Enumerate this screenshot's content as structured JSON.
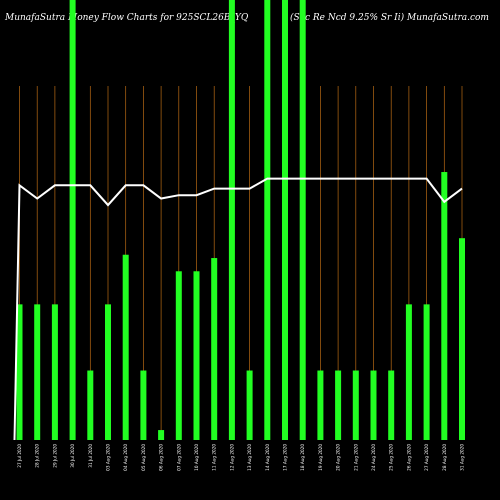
{
  "header": {
    "title_left": "MunafaSutra   Money Flow  Charts for 925SCL26B_YQ",
    "title_right": "(Sec Re  Ncd 9.25% Sr Ii) MunafaSutra.com"
  },
  "colors": {
    "background": "#000000",
    "bar": "#22ff22",
    "gridline": "#b86a14",
    "line": "#ffffff"
  },
  "chart_data": {
    "type": "bar",
    "categories": [
      "27 Jul 2020",
      "28 Jul 2020",
      "29 Jul 2020",
      "30 Jul 2020",
      "31 Jul 2020",
      "03 Aug 2020",
      "04 Aug 2020",
      "05 Aug 2020",
      "06 Aug 2020",
      "07 Aug 2020",
      "10 Aug 2020",
      "11 Aug 2020",
      "12 Aug 2020",
      "13 Aug 2020",
      "14 Aug 2020",
      "17 Aug 2020",
      "18 Aug 2020",
      "19 Aug 2020",
      "20 Aug 2020",
      "21 Aug 2020",
      "24 Aug 2020",
      "25 Aug 2020",
      "26 Aug 2020",
      "27 Aug 2020",
      "28 Aug 2020",
      "31 Aug 2020"
    ],
    "series": [
      {
        "type": "bar",
        "values": [
          41,
          41,
          41,
          133,
          21,
          41,
          56,
          21,
          3,
          51,
          51,
          55,
          133,
          21,
          133,
          133,
          133,
          21,
          21,
          21,
          21,
          21,
          41,
          41,
          81,
          61
        ]
      },
      {
        "type": "line",
        "values": [
          77,
          73,
          77,
          77,
          77,
          71,
          77,
          77,
          73,
          74,
          74,
          76,
          76,
          76,
          79,
          79,
          79,
          79,
          79,
          79,
          79,
          79,
          79,
          79,
          72,
          76
        ]
      }
    ],
    "ylim": [
      0,
      133
    ],
    "grid": true
  }
}
